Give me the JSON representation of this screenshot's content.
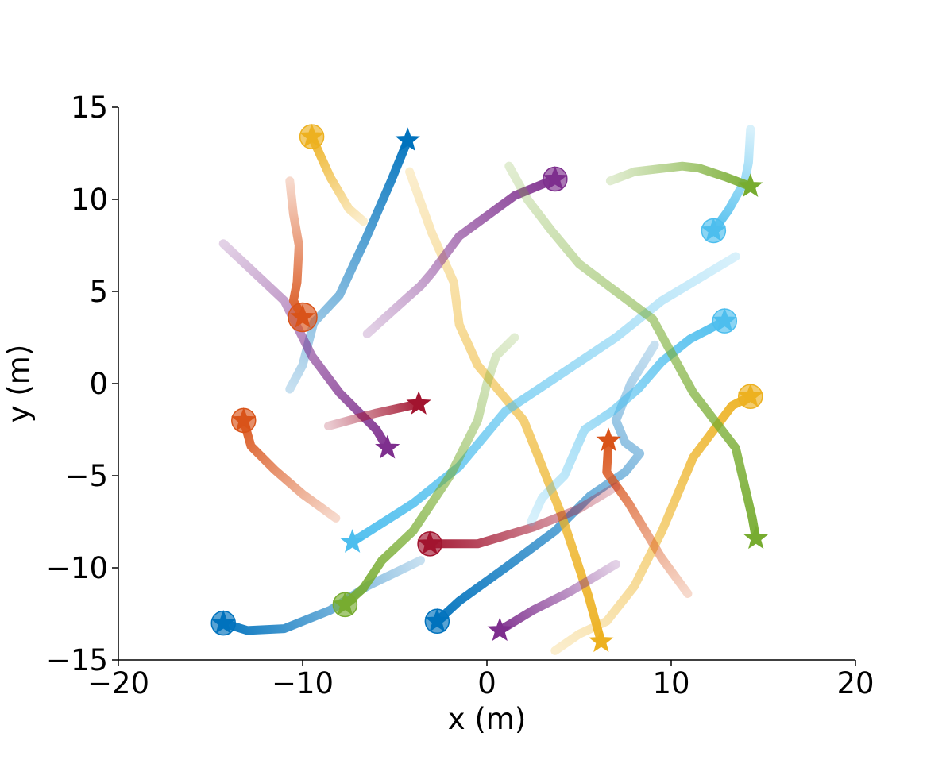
{
  "chart_data": {
    "type": "line",
    "xlabel": "x (m)",
    "ylabel": "y (m)",
    "xlim": [
      -20,
      20
    ],
    "ylim": [
      -15,
      15
    ],
    "xticks": [
      -20,
      -10,
      0,
      10,
      20
    ],
    "yticks": [
      -15,
      -10,
      -5,
      0,
      5,
      10,
      15
    ],
    "xtick_labels": [
      "−20",
      "−10",
      "0",
      "10",
      "20"
    ],
    "ytick_labels": [
      "−15",
      "−10",
      "−5",
      "0",
      "5",
      "10",
      "15"
    ],
    "grid": false,
    "legend": "none",
    "marker_legend": {
      "start_marker": "star",
      "goal_marker": "circle with star"
    },
    "trajectories": [
      {
        "color": "#0072BD",
        "goal": "circle",
        "points": [
          [
            -14.3,
            -13.0
          ],
          [
            -13.0,
            -13.4
          ],
          [
            -11.0,
            -13.3
          ],
          [
            -8.5,
            -12.3
          ],
          [
            -6.5,
            -11.0
          ],
          [
            -3.6,
            -9.6
          ]
        ]
      },
      {
        "color": "#0072BD",
        "goal": "circle",
        "points": [
          [
            -2.7,
            -12.9
          ],
          [
            -1.5,
            -11.8
          ],
          [
            1.0,
            -10.0
          ],
          [
            3.7,
            -8.0
          ],
          [
            5.6,
            -6.1
          ],
          [
            7.5,
            -4.8
          ],
          [
            8.3,
            -3.8
          ],
          [
            7.5,
            -3.2
          ],
          [
            7.0,
            -2.0
          ],
          [
            7.8,
            0.0
          ],
          [
            9.1,
            2.1
          ]
        ]
      },
      {
        "color": "#0072BD",
        "goal": "none",
        "points": [
          [
            -4.3,
            13.2
          ],
          [
            -5.2,
            11.0
          ],
          [
            -6.6,
            7.8
          ],
          [
            -8.0,
            4.8
          ],
          [
            -9.4,
            3.3
          ],
          [
            -10.0,
            1.0
          ],
          [
            -10.7,
            -0.3
          ]
        ]
      },
      {
        "color": "#EDB120",
        "goal": "circle",
        "points": [
          [
            -9.5,
            13.4
          ],
          [
            -8.5,
            11.2
          ],
          [
            -7.5,
            9.5
          ],
          [
            -6.7,
            8.8
          ]
        ]
      },
      {
        "color": "#EDB120",
        "goal": "none",
        "points": [
          [
            6.2,
            -14.0
          ],
          [
            5.5,
            -11.5
          ],
          [
            4.0,
            -7.0
          ],
          [
            2.0,
            -2.0
          ],
          [
            -0.5,
            1.0
          ],
          [
            -1.5,
            3.2
          ],
          [
            -1.8,
            5.5
          ],
          [
            -3.0,
            8.2
          ],
          [
            -4.2,
            11.5
          ]
        ]
      },
      {
        "color": "#EDB120",
        "goal": "circle",
        "points": [
          [
            14.3,
            -0.7
          ],
          [
            13.3,
            -1.2
          ],
          [
            11.2,
            -4.0
          ],
          [
            9.5,
            -8.0
          ],
          [
            8.0,
            -11.0
          ],
          [
            6.5,
            -12.9
          ],
          [
            5.0,
            -13.6
          ],
          [
            3.7,
            -14.5
          ]
        ]
      },
      {
        "color": "#7E2F8E",
        "goal": "circle",
        "points": [
          [
            3.7,
            11.1
          ],
          [
            1.5,
            10.2
          ],
          [
            -1.5,
            8.0
          ],
          [
            -3.0,
            6.0
          ],
          [
            -3.6,
            5.3
          ],
          [
            -4.5,
            4.5
          ],
          [
            -6.5,
            2.7
          ]
        ]
      },
      {
        "color": "#7E2F8E",
        "goal": "none",
        "points": [
          [
            -5.4,
            -3.5
          ],
          [
            -6.0,
            -2.5
          ],
          [
            -8.0,
            -0.5
          ],
          [
            -9.5,
            1.5
          ],
          [
            -11.0,
            4.5
          ],
          [
            -14.3,
            7.6
          ]
        ]
      },
      {
        "color": "#7E2F8E",
        "goal": "none",
        "points": [
          [
            0.7,
            -13.4
          ],
          [
            2.5,
            -12.3
          ],
          [
            4.5,
            -11.3
          ],
          [
            7.0,
            -9.8
          ]
        ]
      },
      {
        "color": "#D95319",
        "goal": "circle",
        "points": [
          [
            -10.0,
            3.6
          ],
          [
            -10.5,
            4.5
          ],
          [
            -10.3,
            5.5
          ],
          [
            -10.2,
            7.5
          ],
          [
            -10.5,
            9.2
          ],
          [
            -10.7,
            11.0
          ]
        ]
      },
      {
        "color": "#D95319",
        "goal": "circle",
        "points": [
          [
            -13.2,
            -2.0
          ],
          [
            -12.8,
            -3.4
          ],
          [
            -11.5,
            -4.7
          ],
          [
            -10.0,
            -6.0
          ],
          [
            -8.2,
            -7.3
          ]
        ]
      },
      {
        "color": "#D95319",
        "goal": "none",
        "points": [
          [
            6.6,
            -3.1
          ],
          [
            6.5,
            -4.8
          ],
          [
            7.7,
            -6.5
          ],
          [
            9.5,
            -9.5
          ],
          [
            10.9,
            -11.4
          ]
        ]
      },
      {
        "color": "#A2142F",
        "goal": "none",
        "points": [
          [
            -3.7,
            -1.1
          ],
          [
            -6.0,
            -1.6
          ],
          [
            -8.6,
            -2.3
          ]
        ]
      },
      {
        "color": "#A2142F",
        "goal": "circle",
        "points": [
          [
            -3.1,
            -8.7
          ],
          [
            -0.5,
            -8.7
          ],
          [
            2.5,
            -7.8
          ],
          [
            5.0,
            -6.8
          ],
          [
            7.0,
            -5.6
          ]
        ]
      },
      {
        "color": "#4DBEEE",
        "goal": "circle",
        "points": [
          [
            12.3,
            8.3
          ],
          [
            13.1,
            9.4
          ],
          [
            14.0,
            11.0
          ],
          [
            14.2,
            12.0
          ],
          [
            14.3,
            13.8
          ]
        ]
      },
      {
        "color": "#4DBEEE",
        "goal": "none",
        "points": [
          [
            -7.3,
            -8.6
          ],
          [
            -4.0,
            -6.5
          ],
          [
            -1.5,
            -4.5
          ],
          [
            1.0,
            -1.5
          ],
          [
            4.0,
            0.5
          ],
          [
            7.0,
            2.5
          ],
          [
            9.5,
            4.5
          ],
          [
            11.5,
            5.7
          ],
          [
            13.5,
            6.9
          ]
        ]
      },
      {
        "color": "#4DBEEE",
        "goal": "circle",
        "points": [
          [
            12.9,
            3.4
          ],
          [
            11.0,
            2.4
          ],
          [
            9.5,
            1.2
          ],
          [
            8.2,
            -0.3
          ],
          [
            6.8,
            -1.5
          ],
          [
            5.3,
            -2.5
          ],
          [
            4.2,
            -5.0
          ],
          [
            3.0,
            -6.2
          ],
          [
            2.4,
            -7.5
          ]
        ]
      },
      {
        "color": "#77AC30",
        "goal": "none",
        "points": [
          [
            14.6,
            -8.4
          ],
          [
            14.4,
            -7.3
          ],
          [
            13.5,
            -3.5
          ],
          [
            11.2,
            -0.5
          ],
          [
            9.0,
            3.5
          ],
          [
            7.0,
            5.0
          ],
          [
            5.0,
            6.5
          ],
          [
            3.5,
            8.3
          ],
          [
            2.2,
            10.0
          ],
          [
            1.2,
            11.8
          ]
        ]
      },
      {
        "color": "#77AC30",
        "goal": "circle",
        "points": [
          [
            -7.7,
            -12.0
          ],
          [
            -6.7,
            -11.1
          ],
          [
            -5.7,
            -9.6
          ],
          [
            -4.0,
            -8.0
          ],
          [
            -2.0,
            -5.0
          ],
          [
            -0.5,
            -2.0
          ],
          [
            0.0,
            0.0
          ],
          [
            0.5,
            1.5
          ],
          [
            1.5,
            2.5
          ]
        ]
      },
      {
        "color": "#77AC30",
        "goal": "none",
        "points": [
          [
            14.3,
            10.7
          ],
          [
            13.0,
            11.2
          ],
          [
            11.5,
            11.7
          ],
          [
            10.6,
            11.8
          ],
          [
            8.0,
            11.5
          ],
          [
            6.7,
            11.0
          ]
        ]
      }
    ]
  }
}
